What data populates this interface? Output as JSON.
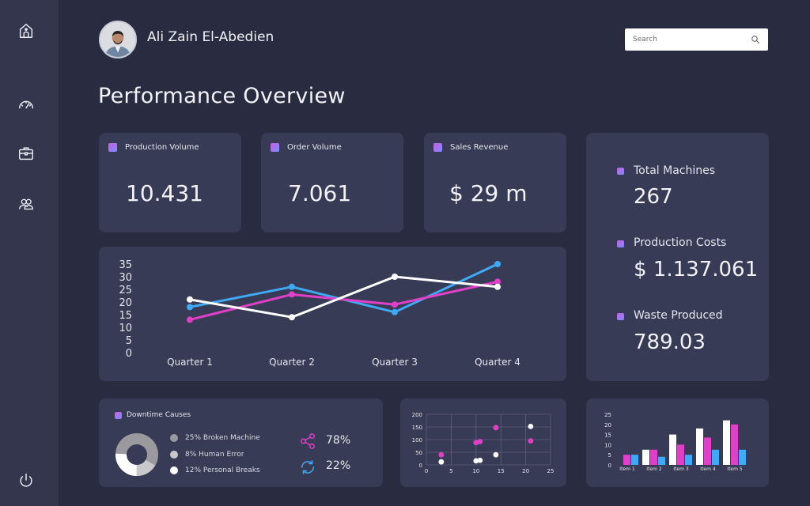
{
  "user": {
    "name": "Ali Zain El-Abedien"
  },
  "search": {
    "placeholder": "Search"
  },
  "page": {
    "title": "Performance Overview"
  },
  "nav": [
    {
      "name": "home-icon"
    },
    {
      "name": "speedometer-icon"
    },
    {
      "name": "briefcase-icon"
    },
    {
      "name": "users-icon"
    },
    {
      "name": "power-icon"
    }
  ],
  "kpis": [
    {
      "label": "Production Volume",
      "value": "10.431"
    },
    {
      "label": "Order Volume",
      "value": "7.061"
    },
    {
      "label": "Sales Revenue",
      "value": "$ 29 m"
    }
  ],
  "stats": [
    {
      "label": "Total Machines",
      "value": "267"
    },
    {
      "label": "Production Costs",
      "value": "$ 1.137.061"
    },
    {
      "label": "Waste Produced",
      "value": "789.03"
    }
  ],
  "downtime": {
    "title": "Downtime Causes",
    "legend": [
      {
        "label": "25% Broken Machine",
        "color": "#9a9a9e"
      },
      {
        "label": "8% Human Error",
        "color": "#c9c9cd"
      },
      {
        "label": "12% Personal Breaks",
        "color": "#ffffff"
      }
    ],
    "share_pct": "78%",
    "sync_pct": "22%"
  },
  "colors": {
    "blue": "#3fa9f5",
    "pink": "#e040c8",
    "white": "#ffffff"
  },
  "chart_data": [
    {
      "type": "line",
      "categories": [
        "Quarter 1",
        "Quarter 2",
        "Quarter 3",
        "Quarter 4"
      ],
      "yticks": [
        0,
        5,
        10,
        15,
        20,
        25,
        30,
        35
      ],
      "ylim": [
        0,
        35
      ],
      "series": [
        {
          "color": "#3fa9f5",
          "values": [
            18,
            26,
            16,
            35
          ]
        },
        {
          "color": "#e040c8",
          "values": [
            13,
            23,
            19,
            28
          ]
        },
        {
          "color": "#ffffff",
          "values": [
            21,
            14,
            30,
            26
          ]
        }
      ]
    },
    {
      "type": "scatter",
      "xticks": [
        0,
        5,
        10,
        15,
        20,
        25
      ],
      "yticks": [
        0,
        50,
        100,
        150,
        200
      ],
      "xlim": [
        0,
        25
      ],
      "ylim": [
        0,
        200
      ],
      "series": [
        {
          "color": "#e040c8",
          "points": [
            [
              3,
              40
            ],
            [
              10,
              88
            ],
            [
              10.8,
              92
            ],
            [
              14,
              147
            ],
            [
              21,
              95
            ]
          ]
        },
        {
          "color": "#ffffff",
          "points": [
            [
              3,
              12
            ],
            [
              10,
              16
            ],
            [
              10.8,
              18
            ],
            [
              14,
              40
            ],
            [
              21,
              152
            ]
          ]
        }
      ]
    },
    {
      "type": "bar",
      "categories": [
        "Item 1",
        "Item 2",
        "Item 3",
        "Item 4",
        "Item 5"
      ],
      "yticks": [
        0,
        5,
        10,
        15,
        20,
        25
      ],
      "ylim": [
        0,
        25
      ],
      "series": [
        {
          "color": "#ffffff",
          "values": [
            0,
            7.5,
            15,
            18,
            22
          ]
        },
        {
          "color": "#e040c8",
          "values": [
            5,
            7.5,
            10,
            13.5,
            20
          ]
        },
        {
          "color": "#3fa9f5",
          "values": [
            5,
            4,
            5,
            7.5,
            7.5
          ]
        }
      ]
    }
  ]
}
